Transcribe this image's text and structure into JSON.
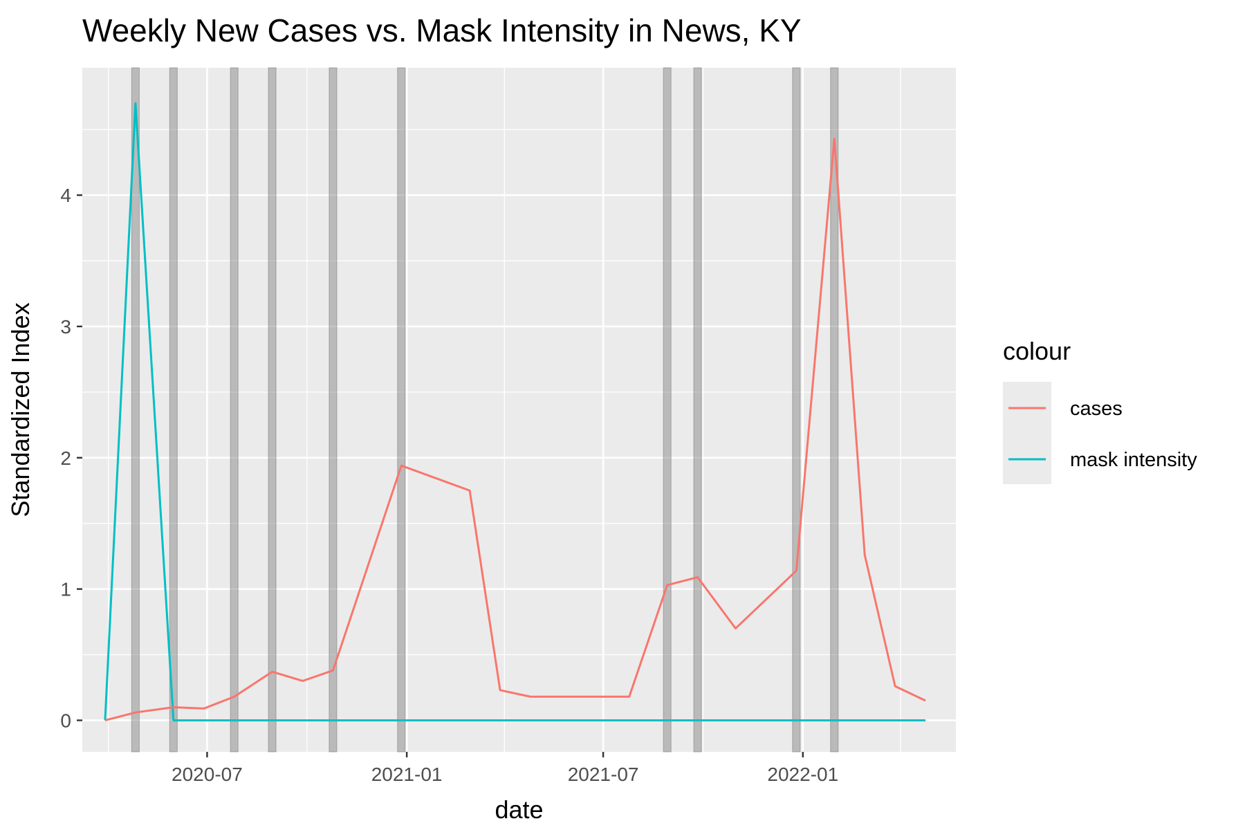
{
  "chart_data": {
    "type": "line",
    "title": "Weekly New Cases vs. Mask Intensity in News, KY",
    "xlabel": "date",
    "ylabel": "Standardized Index",
    "x_type": "date",
    "xlim": [
      "2020-03-08",
      "2022-05-22"
    ],
    "ylim": [
      -0.24,
      4.97
    ],
    "x_ticks": [
      {
        "date": "2020-07-01",
        "label": "2020-07"
      },
      {
        "date": "2021-01-01",
        "label": "2021-01"
      },
      {
        "date": "2021-07-01",
        "label": "2021-07"
      },
      {
        "date": "2022-01-01",
        "label": "2022-01"
      }
    ],
    "x_minor_ticks": [
      "2020-04-01",
      "2020-10-01",
      "2021-04-01",
      "2021-10-01",
      "2022-04-01"
    ],
    "y_ticks": [
      0,
      1,
      2,
      3,
      4
    ],
    "y_minor_ticks": [
      0.5,
      1.5,
      2.5,
      3.5,
      4.5
    ],
    "grid": true,
    "legend": {
      "title": "colour",
      "position": "right"
    },
    "series": [
      {
        "name": "cases",
        "color": "#F8766D",
        "points": [
          {
            "x": "2020-03-29",
            "y": 0.0
          },
          {
            "x": "2020-04-26",
            "y": 0.06
          },
          {
            "x": "2020-05-31",
            "y": 0.1
          },
          {
            "x": "2020-06-28",
            "y": 0.09
          },
          {
            "x": "2020-07-26",
            "y": 0.18
          },
          {
            "x": "2020-08-30",
            "y": 0.37
          },
          {
            "x": "2020-09-27",
            "y": 0.3
          },
          {
            "x": "2020-10-25",
            "y": 0.38
          },
          {
            "x": "2020-12-27",
            "y": 1.94
          },
          {
            "x": "2021-02-28",
            "y": 1.75
          },
          {
            "x": "2021-03-28",
            "y": 0.23
          },
          {
            "x": "2021-04-25",
            "y": 0.18
          },
          {
            "x": "2021-07-25",
            "y": 0.18
          },
          {
            "x": "2021-08-29",
            "y": 1.03
          },
          {
            "x": "2021-09-26",
            "y": 1.09
          },
          {
            "x": "2021-10-31",
            "y": 0.7
          },
          {
            "x": "2021-12-26",
            "y": 1.14
          },
          {
            "x": "2022-01-30",
            "y": 4.43
          },
          {
            "x": "2022-02-27",
            "y": 1.26
          },
          {
            "x": "2022-03-27",
            "y": 0.26
          },
          {
            "x": "2022-04-24",
            "y": 0.15
          }
        ]
      },
      {
        "name": "mask intensity",
        "color": "#00BFC4",
        "points": [
          {
            "x": "2020-03-29",
            "y": 0.0
          },
          {
            "x": "2020-04-26",
            "y": 4.7
          },
          {
            "x": "2020-05-31",
            "y": 0.0
          },
          {
            "x": "2022-04-24",
            "y": 0.0
          }
        ]
      }
    ],
    "vertical_markers": {
      "color": "#7f7f7f",
      "dates": [
        "2020-04-26",
        "2020-05-31",
        "2020-07-26",
        "2020-08-30",
        "2020-10-25",
        "2020-12-27",
        "2021-08-29",
        "2021-09-26",
        "2021-12-26",
        "2022-01-30"
      ]
    },
    "panel_background": "#EBEBEB",
    "grid_color": "#FFFFFF"
  }
}
